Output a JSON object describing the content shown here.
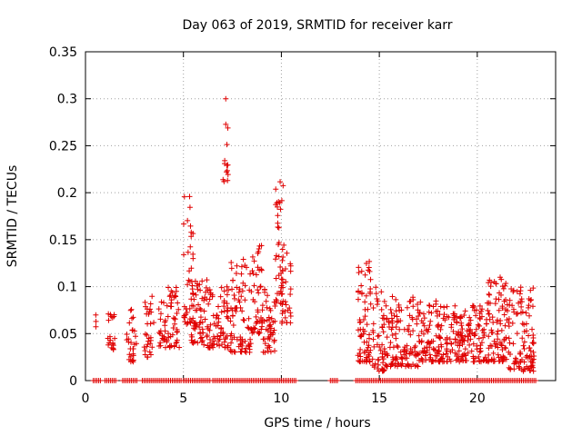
{
  "chart_data": {
    "type": "scatter",
    "title": "Day 063 of 2019, SRMTID for receiver karr",
    "xlabel": "GPS time / hours",
    "ylabel": "SRMTID / TECUs",
    "xlim": [
      0,
      24
    ],
    "ylim": [
      0,
      0.35
    ],
    "x_ticks": [
      0,
      5,
      10,
      15,
      20
    ],
    "x_tick_labels": [
      "0",
      "5",
      "10",
      "15",
      "20"
    ],
    "y_ticks": [
      0,
      0.05,
      0.1,
      0.15,
      0.2,
      0.25,
      0.3,
      0.35
    ],
    "y_tick_labels": [
      "0",
      "0.05",
      "0.1",
      "0.15",
      "0.2",
      "0.25",
      "0.3",
      "0.35"
    ],
    "grid": true,
    "marker": "+",
    "color": "#e00000",
    "series": [
      {
        "name": "SRMTID",
        "clusters": [
          {
            "x_start": 0.4,
            "x_end": 0.6,
            "y_min": 0.055,
            "y_max": 0.07,
            "count": 3
          },
          {
            "x_start": 1.1,
            "x_end": 1.5,
            "y_min": 0.03,
            "y_max": 0.08,
            "count": 20
          },
          {
            "x_start": 2.1,
            "x_end": 2.6,
            "y_min": 0.02,
            "y_max": 0.08,
            "count": 28
          },
          {
            "x_start": 3.0,
            "x_end": 3.5,
            "y_min": 0.025,
            "y_max": 0.09,
            "count": 30
          },
          {
            "x_start": 3.7,
            "x_end": 4.2,
            "y_min": 0.035,
            "y_max": 0.085,
            "count": 25
          },
          {
            "x_start": 4.2,
            "x_end": 4.8,
            "y_min": 0.035,
            "y_max": 0.1,
            "count": 40
          },
          {
            "x_start": 5.0,
            "x_end": 5.5,
            "y_min": 0.06,
            "y_max": 0.2,
            "count": 40
          },
          {
            "x_start": 5.4,
            "x_end": 6.0,
            "y_min": 0.04,
            "y_max": 0.11,
            "count": 50
          },
          {
            "x_start": 6.0,
            "x_end": 6.6,
            "y_min": 0.035,
            "y_max": 0.11,
            "count": 40
          },
          {
            "x_start": 6.6,
            "x_end": 7.3,
            "y_min": 0.035,
            "y_max": 0.1,
            "count": 50
          },
          {
            "x_start": 7.0,
            "x_end": 7.3,
            "y_min": 0.21,
            "y_max": 0.305,
            "count": 14
          },
          {
            "x_start": 7.4,
            "x_end": 8.5,
            "y_min": 0.03,
            "y_max": 0.14,
            "count": 80
          },
          {
            "x_start": 8.5,
            "x_end": 9.0,
            "y_min": 0.05,
            "y_max": 0.15,
            "count": 40
          },
          {
            "x_start": 9.0,
            "x_end": 9.7,
            "y_min": 0.03,
            "y_max": 0.1,
            "count": 50
          },
          {
            "x_start": 9.7,
            "x_end": 10.1,
            "y_min": 0.08,
            "y_max": 0.22,
            "count": 40
          },
          {
            "x_start": 10.0,
            "x_end": 10.5,
            "y_min": 0.06,
            "y_max": 0.15,
            "count": 30
          },
          {
            "x_start": 13.9,
            "x_end": 14.6,
            "y_min": 0.02,
            "y_max": 0.13,
            "count": 70
          },
          {
            "x_start": 14.6,
            "x_end": 15.4,
            "y_min": 0.01,
            "y_max": 0.1,
            "count": 60
          },
          {
            "x_start": 15.4,
            "x_end": 17.0,
            "y_min": 0.015,
            "y_max": 0.09,
            "count": 110
          },
          {
            "x_start": 17.0,
            "x_end": 19.0,
            "y_min": 0.02,
            "y_max": 0.085,
            "count": 140
          },
          {
            "x_start": 19.0,
            "x_end": 20.5,
            "y_min": 0.02,
            "y_max": 0.08,
            "count": 110
          },
          {
            "x_start": 20.5,
            "x_end": 21.5,
            "y_min": 0.02,
            "y_max": 0.11,
            "count": 90
          },
          {
            "x_start": 21.5,
            "x_end": 22.9,
            "y_min": 0.01,
            "y_max": 0.1,
            "count": 110
          }
        ],
        "zero_ranges": [
          [
            0.4,
            0.8
          ],
          [
            1.0,
            1.6
          ],
          [
            1.9,
            2.7
          ],
          [
            2.9,
            4.9
          ],
          [
            5.0,
            6.4
          ],
          [
            6.5,
            10.8
          ],
          [
            12.5,
            12.9
          ],
          [
            13.8,
            23.0
          ]
        ]
      }
    ]
  }
}
